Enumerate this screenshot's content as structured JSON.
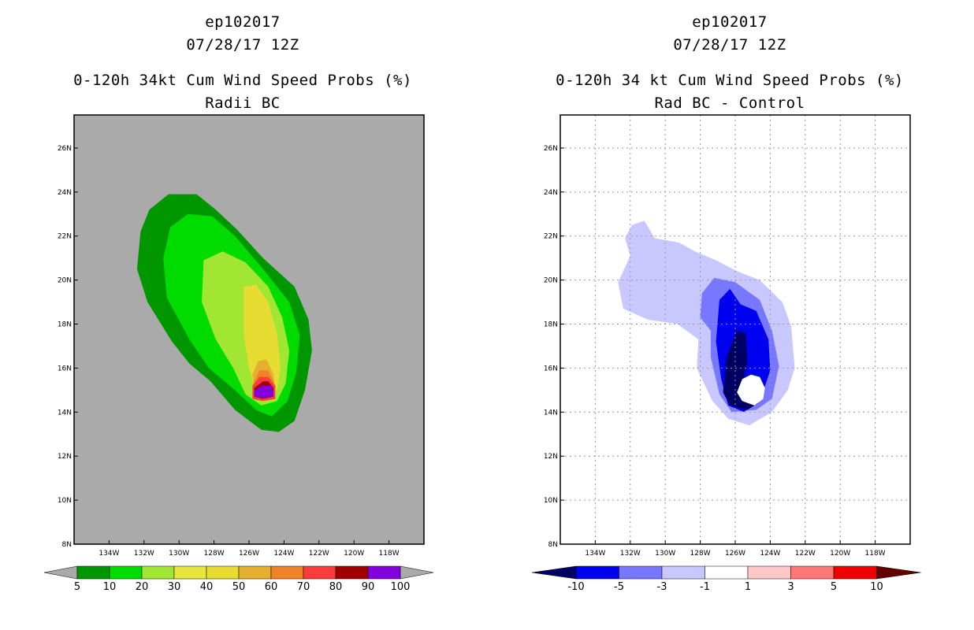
{
  "chart_data": [
    {
      "type": "heatmap",
      "name": "left-panel",
      "title_lines": [
        "ep102017",
        "07/28/17 12Z",
        "0-120h 34kt Cum Wind Speed Probs (%)",
        "Radii BC"
      ],
      "xlim": [
        -136,
        -116
      ],
      "ylim": [
        8,
        27.5
      ],
      "xticks": [
        -134,
        -132,
        -130,
        -128,
        -126,
        -124,
        -122,
        -120,
        -118
      ],
      "xtick_labels": [
        "134W",
        "132W",
        "130W",
        "128W",
        "126W",
        "124W",
        "122W",
        "120W",
        "118W"
      ],
      "yticks": [
        8,
        10,
        12,
        14,
        16,
        18,
        20,
        22,
        24,
        26
      ],
      "ytick_labels": [
        "8N",
        "10N",
        "12N",
        "14N",
        "16N",
        "18N",
        "20N",
        "22N",
        "24N",
        "26N"
      ],
      "background": "#aaaaaa",
      "grid": false,
      "contour_levels": [
        {
          "level": 5,
          "color": "#009600",
          "outline": [
            [
              -131.7,
              23.2
            ],
            [
              -130.6,
              23.9
            ],
            [
              -129.0,
              23.9
            ],
            [
              -127.9,
              23.2
            ],
            [
              -126.7,
              22.3
            ],
            [
              -125.2,
              21.0
            ],
            [
              -123.4,
              19.7
            ],
            [
              -122.6,
              18.2
            ],
            [
              -122.4,
              16.8
            ],
            [
              -122.8,
              15.0
            ],
            [
              -123.4,
              13.6
            ],
            [
              -124.3,
              13.1
            ],
            [
              -125.3,
              13.2
            ],
            [
              -126.8,
              14.1
            ],
            [
              -128.2,
              15.4
            ],
            [
              -129.4,
              16.2
            ],
            [
              -130.4,
              17.2
            ],
            [
              -131.8,
              19.0
            ],
            [
              -132.4,
              20.5
            ],
            [
              -132.2,
              22.2
            ]
          ]
        },
        {
          "level": 10,
          "color": "#00dc00",
          "outline": [
            [
              -130.5,
              22.4
            ],
            [
              -129.5,
              23.0
            ],
            [
              -128.1,
              22.9
            ],
            [
              -126.8,
              22.0
            ],
            [
              -125.2,
              20.5
            ],
            [
              -123.7,
              19.0
            ],
            [
              -123.1,
              17.5
            ],
            [
              -123.3,
              15.8
            ],
            [
              -123.8,
              14.5
            ],
            [
              -124.7,
              13.8
            ],
            [
              -125.6,
              14.1
            ],
            [
              -126.8,
              15.0
            ],
            [
              -128.3,
              16.0
            ],
            [
              -129.4,
              17.3
            ],
            [
              -130.7,
              19.2
            ],
            [
              -130.9,
              21.0
            ]
          ]
        },
        {
          "level": 20,
          "color": "#a0e632",
          "outline": [
            [
              -128.6,
              20.9
            ],
            [
              -127.5,
              21.3
            ],
            [
              -126.2,
              20.8
            ],
            [
              -124.9,
              19.7
            ],
            [
              -124.1,
              18.3
            ],
            [
              -123.7,
              16.8
            ],
            [
              -123.9,
              15.3
            ],
            [
              -124.4,
              14.5
            ],
            [
              -125.3,
              14.3
            ],
            [
              -126.2,
              14.8
            ],
            [
              -126.9,
              16.0
            ],
            [
              -127.9,
              17.3
            ],
            [
              -128.7,
              19.0
            ]
          ]
        },
        {
          "level": 30,
          "color": "#e6dc32",
          "outline": [
            [
              -126.3,
              19.7
            ],
            [
              -125.6,
              19.8
            ],
            [
              -124.9,
              19.0
            ],
            [
              -124.4,
              17.6
            ],
            [
              -124.2,
              16.0
            ],
            [
              -124.4,
              15.0
            ],
            [
              -125.0,
              14.6
            ],
            [
              -125.6,
              14.9
            ],
            [
              -126.0,
              16.0
            ],
            [
              -126.3,
              17.5
            ]
          ]
        },
        {
          "level": 40,
          "color": "#e6dc32",
          "outline": [
            [
              -125.5,
              17.4
            ],
            [
              -124.9,
              17.3
            ],
            [
              -124.5,
              16.2
            ],
            [
              -124.4,
              15.2
            ],
            [
              -125.0,
              14.8
            ],
            [
              -125.7,
              15.2
            ],
            [
              -125.9,
              16.1
            ]
          ]
        },
        {
          "level": 50,
          "color": "#e6af2d",
          "outline": [
            [
              -125.5,
              16.3
            ],
            [
              -125.0,
              16.4
            ],
            [
              -124.6,
              15.7
            ],
            [
              -124.5,
              15.0
            ],
            [
              -125.0,
              14.7
            ],
            [
              -125.7,
              15.0
            ],
            [
              -125.8,
              15.7
            ]
          ]
        },
        {
          "level": 60,
          "color": "#f08228",
          "outline": [
            [
              -125.4,
              15.9
            ],
            [
              -124.9,
              15.9
            ],
            [
              -124.6,
              15.4
            ],
            [
              -124.6,
              14.8
            ],
            [
              -125.1,
              14.6
            ],
            [
              -125.7,
              14.8
            ],
            [
              -125.7,
              15.4
            ]
          ]
        },
        {
          "level": 70,
          "color": "#fa3c3c",
          "outline": [
            [
              -125.4,
              15.6
            ],
            [
              -124.9,
              15.6
            ],
            [
              -124.5,
              15.2
            ],
            [
              -124.5,
              14.6
            ],
            [
              -125.2,
              14.5
            ],
            [
              -125.8,
              14.6
            ],
            [
              -125.8,
              15.2
            ]
          ]
        },
        {
          "level": 80,
          "color": "#a00000",
          "outline": [
            [
              -125.2,
              15.4
            ],
            [
              -124.9,
              15.4
            ],
            [
              -124.6,
              15.1
            ],
            [
              -124.6,
              14.7
            ],
            [
              -125.2,
              14.6
            ],
            [
              -125.7,
              14.7
            ],
            [
              -125.7,
              15.1
            ]
          ]
        },
        {
          "level": 90,
          "color": "#8200dc",
          "outline": [
            [
              -125.3,
              15.2
            ],
            [
              -124.7,
              15.2
            ],
            [
              -124.6,
              14.9
            ],
            [
              -124.6,
              14.7
            ],
            [
              -125.2,
              14.65
            ],
            [
              -125.7,
              14.7
            ],
            [
              -125.7,
              14.95
            ]
          ]
        }
      ],
      "colorbar": {
        "labels": [
          "5",
          "10",
          "20",
          "30",
          "40",
          "50",
          "60",
          "70",
          "80",
          "90",
          "100"
        ],
        "colors": [
          "#009600",
          "#00dc00",
          "#a0e632",
          "#e6e63c",
          "#e6dc32",
          "#e6af2d",
          "#f08228",
          "#fa3c3c",
          "#a00000",
          "#8200dc"
        ],
        "end_colors": [
          "#aaaaaa",
          "#aaaaaa"
        ]
      }
    },
    {
      "type": "heatmap",
      "name": "right-panel",
      "title_lines": [
        "ep102017",
        "07/28/17 12Z",
        "0-120h 34 kt Cum Wind Speed Probs (%)",
        "Rad BC - Control"
      ],
      "xlim": [
        -136,
        -116
      ],
      "ylim": [
        8,
        27.5
      ],
      "xticks": [
        -134,
        -132,
        -130,
        -128,
        -126,
        -124,
        -122,
        -120,
        -118
      ],
      "xtick_labels": [
        "134W",
        "132W",
        "130W",
        "128W",
        "126W",
        "124W",
        "122W",
        "120W",
        "118W"
      ],
      "yticks": [
        8,
        10,
        12,
        14,
        16,
        18,
        20,
        22,
        24,
        26
      ],
      "ytick_labels": [
        "8N",
        "10N",
        "12N",
        "14N",
        "16N",
        "18N",
        "20N",
        "22N",
        "24N",
        "26N"
      ],
      "background": "#ffffff",
      "grid": true,
      "contour_levels": [
        {
          "level": -1,
          "color": "#c8c8ff",
          "outline": [
            [
              -131.9,
              22.5
            ],
            [
              -131.2,
              22.7
            ],
            [
              -130.6,
              21.9
            ],
            [
              -129.2,
              21.7
            ],
            [
              -128.3,
              21.3
            ],
            [
              -127.1,
              20.9
            ],
            [
              -125.9,
              20.4
            ],
            [
              -124.6,
              20.0
            ],
            [
              -123.3,
              19.0
            ],
            [
              -122.8,
              17.9
            ],
            [
              -122.6,
              16.0
            ],
            [
              -123.0,
              15.0
            ],
            [
              -123.9,
              14.0
            ],
            [
              -125.2,
              13.4
            ],
            [
              -126.4,
              13.7
            ],
            [
              -127.3,
              14.5
            ],
            [
              -128.2,
              16.0
            ],
            [
              -128.1,
              17.3
            ],
            [
              -129.3,
              18.0
            ],
            [
              -131.0,
              18.2
            ],
            [
              -132.4,
              18.7
            ],
            [
              -132.7,
              19.9
            ],
            [
              -132.0,
              21.1
            ],
            [
              -132.3,
              21.9
            ]
          ]
        },
        {
          "level": -3,
          "color": "#7878ff",
          "outline": [
            [
              -127.9,
              19.4
            ],
            [
              -127.2,
              20.1
            ],
            [
              -126.0,
              19.9
            ],
            [
              -124.6,
              19.1
            ],
            [
              -123.9,
              17.7
            ],
            [
              -123.5,
              16.1
            ],
            [
              -123.9,
              14.6
            ],
            [
              -124.8,
              14.1
            ],
            [
              -126.2,
              14.0
            ],
            [
              -126.9,
              14.8
            ],
            [
              -127.4,
              16.5
            ],
            [
              -127.4,
              17.7
            ],
            [
              -128.0,
              18.3
            ]
          ]
        },
        {
          "level": -5,
          "color": "#0000f0",
          "outline": [
            [
              -126.9,
              19.1
            ],
            [
              -126.3,
              19.6
            ],
            [
              -125.7,
              18.9
            ],
            [
              -124.8,
              18.6
            ],
            [
              -124.1,
              17.3
            ],
            [
              -124.0,
              15.9
            ],
            [
              -124.5,
              14.7
            ],
            [
              -125.5,
              14.0
            ],
            [
              -126.4,
              14.3
            ],
            [
              -126.8,
              15.5
            ],
            [
              -127.1,
              17.2
            ]
          ]
        },
        {
          "level": -10,
          "color": "#000064",
          "outline": [
            [
              -125.9,
              17.7
            ],
            [
              -125.4,
              17.6
            ],
            [
              -125.3,
              16.3
            ],
            [
              -125.6,
              15.2
            ],
            [
              -124.7,
              14.4
            ],
            [
              -125.3,
              14.1
            ],
            [
              -126.3,
              14.3
            ],
            [
              -126.7,
              14.9
            ],
            [
              -126.5,
              16.5
            ]
          ]
        },
        {
          "level": 1,
          "color": "#ffffff",
          "outline": [
            [
              -125.1,
              15.7
            ],
            [
              -124.6,
              15.6
            ],
            [
              -124.3,
              15.1
            ],
            [
              -124.4,
              14.6
            ],
            [
              -124.9,
              14.3
            ],
            [
              -125.6,
              14.5
            ],
            [
              -125.9,
              14.9
            ],
            [
              -125.6,
              15.5
            ]
          ]
        }
      ],
      "colorbar": {
        "labels": [
          "-10",
          "-5",
          "-3",
          "-1",
          "1",
          "3",
          "5",
          "10"
        ],
        "colors": [
          "#0000f0",
          "#7878ff",
          "#c8c8ff",
          "#ffffff",
          "#ffc8c8",
          "#ff7878",
          "#f00000"
        ],
        "end_colors": [
          "#000064",
          "#640000"
        ]
      }
    }
  ]
}
